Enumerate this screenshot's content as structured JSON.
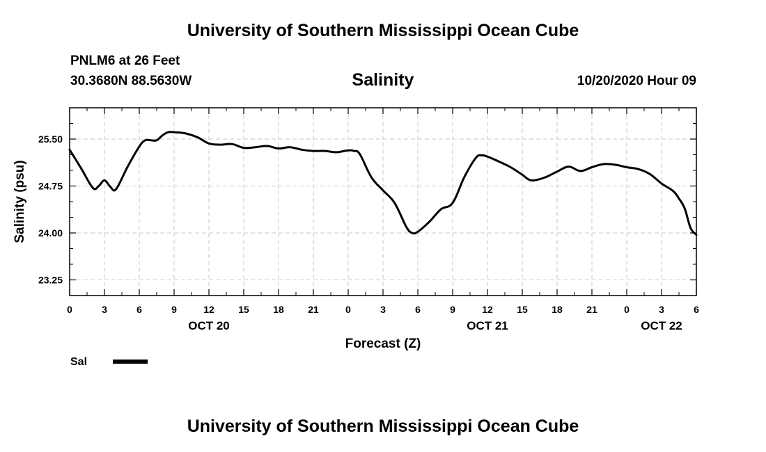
{
  "header": {
    "top_title": "University of Southern Mississippi Ocean Cube",
    "station": "PNLM6 at 26 Feet",
    "coords": "30.3680N 88.5630W",
    "datetime": "10/20/2020 Hour 09"
  },
  "footer": {
    "bottom_title": "University of Southern Mississippi Ocean Cube"
  },
  "chart_data": {
    "type": "line",
    "title": "Salinity",
    "xlabel": "Forecast (Z)",
    "ylabel": "Salinity (psu)",
    "xlim": [
      0,
      54
    ],
    "ylim": [
      23.0,
      26.0
    ],
    "grid": true,
    "x_tick_values": [
      0,
      3,
      6,
      9,
      12,
      15,
      18,
      21,
      24,
      27,
      30,
      33,
      36,
      39,
      42,
      45,
      48,
      51,
      54
    ],
    "x_tick_labels": [
      "0",
      "3",
      "6",
      "9",
      "12",
      "15",
      "18",
      "21",
      "0",
      "3",
      "6",
      "9",
      "12",
      "15",
      "18",
      "21",
      "0",
      "3",
      "6"
    ],
    "y_tick_values": [
      23.25,
      24.0,
      24.75,
      25.5
    ],
    "y_tick_labels": [
      "23.25",
      "24.00",
      "24.75",
      "25.50"
    ],
    "day_labels": [
      {
        "x": 12,
        "label": "OCT 20"
      },
      {
        "x": 36,
        "label": "OCT 21"
      },
      {
        "x": 51,
        "label": "OCT 22"
      }
    ],
    "series": [
      {
        "name": "Sal",
        "color": "#000000",
        "x": [
          0,
          1,
          2,
          2.5,
          3,
          3.5,
          4,
          5,
          6,
          6.5,
          7,
          7.5,
          8,
          8.5,
          9,
          10,
          11,
          12,
          13,
          14,
          15,
          16,
          17,
          18,
          19,
          20,
          21,
          22,
          23,
          24,
          24.5,
          25,
          26,
          27,
          28,
          29,
          29.5,
          30,
          31,
          32,
          33,
          34,
          35,
          35.5,
          36,
          37,
          38,
          39,
          39.5,
          40,
          41,
          42,
          43,
          44,
          45,
          46,
          47,
          48,
          49,
          50,
          51,
          52,
          52.5,
          53,
          53.5,
          54
        ],
        "values": [
          25.33,
          25.03,
          24.72,
          24.75,
          24.84,
          24.74,
          24.7,
          25.06,
          25.38,
          25.48,
          25.48,
          25.48,
          25.56,
          25.61,
          25.61,
          25.59,
          25.53,
          25.43,
          25.41,
          25.42,
          25.36,
          25.37,
          25.39,
          25.35,
          25.37,
          25.33,
          25.31,
          25.31,
          25.29,
          25.32,
          25.31,
          25.26,
          24.89,
          24.68,
          24.48,
          24.1,
          24.0,
          24.02,
          24.18,
          24.38,
          24.48,
          24.89,
          25.2,
          25.24,
          25.22,
          25.14,
          25.05,
          24.93,
          24.86,
          24.84,
          24.89,
          24.98,
          25.06,
          24.99,
          25.05,
          25.1,
          25.09,
          25.05,
          25.02,
          24.94,
          24.79,
          24.67,
          24.55,
          24.39,
          24.08,
          23.97
        ]
      }
    ],
    "legend": {
      "label": "Sal",
      "placement": "bottom-left"
    }
  }
}
